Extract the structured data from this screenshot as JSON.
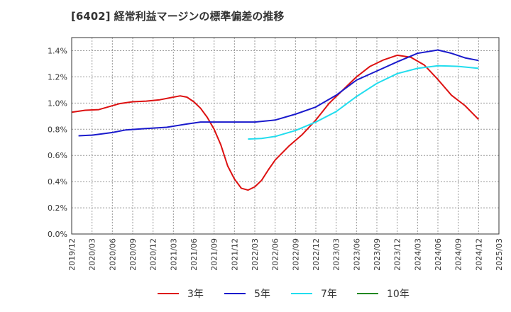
{
  "chart_data": {
    "type": "line",
    "title": "[6402]  経常利益マージンの標準偏差の推移",
    "xlabel": "",
    "ylabel": "",
    "x_ticks": [
      "2019/12",
      "2020/03",
      "2020/06",
      "2020/09",
      "2020/12",
      "2021/03",
      "2021/06",
      "2021/09",
      "2021/12",
      "2022/03",
      "2022/06",
      "2022/09",
      "2022/12",
      "2023/03",
      "2023/06",
      "2023/09",
      "2023/12",
      "2024/03",
      "2024/06",
      "2024/09",
      "2024/12",
      "2025/03"
    ],
    "y_ticks": [
      "0.0%",
      "0.2%",
      "0.4%",
      "0.6%",
      "0.8%",
      "1.0%",
      "1.2%",
      "1.4%"
    ],
    "ylim": [
      0,
      1.5
    ],
    "grid": true,
    "legend_position": "bottom",
    "series": [
      {
        "name": "3年",
        "color": "#dd1111",
        "points": [
          [
            "2019/12",
            0.93
          ],
          [
            "2020/02",
            0.945
          ],
          [
            "2020/04",
            0.95
          ],
          [
            "2020/05",
            0.965
          ],
          [
            "2020/07",
            0.995
          ],
          [
            "2020/09",
            1.01
          ],
          [
            "2020/11",
            1.015
          ],
          [
            "2021/01",
            1.025
          ],
          [
            "2021/03",
            1.045
          ],
          [
            "2021/04",
            1.055
          ],
          [
            "2021/05",
            1.045
          ],
          [
            "2021/06",
            1.01
          ],
          [
            "2021/07",
            0.96
          ],
          [
            "2021/08",
            0.89
          ],
          [
            "2021/09",
            0.8
          ],
          [
            "2021/10",
            0.68
          ],
          [
            "2021/11",
            0.52
          ],
          [
            "2021/12",
            0.42
          ],
          [
            "2022/01",
            0.35
          ],
          [
            "2022/02",
            0.335
          ],
          [
            "2022/03",
            0.36
          ],
          [
            "2022/04",
            0.41
          ],
          [
            "2022/05",
            0.49
          ],
          [
            "2022/06",
            0.565
          ],
          [
            "2022/08",
            0.67
          ],
          [
            "2022/10",
            0.76
          ],
          [
            "2022/12",
            0.87
          ],
          [
            "2023/02",
            1.0
          ],
          [
            "2023/04",
            1.1
          ],
          [
            "2023/06",
            1.2
          ],
          [
            "2023/08",
            1.28
          ],
          [
            "2023/10",
            1.33
          ],
          [
            "2023/12",
            1.365
          ],
          [
            "2024/02",
            1.35
          ],
          [
            "2024/04",
            1.29
          ],
          [
            "2024/06",
            1.18
          ],
          [
            "2024/08",
            1.06
          ],
          [
            "2024/10",
            0.98
          ],
          [
            "2024/12",
            0.875
          ]
        ]
      },
      {
        "name": "5年",
        "color": "#1a1acc",
        "points": [
          [
            "2020/01",
            0.75
          ],
          [
            "2020/03",
            0.755
          ],
          [
            "2020/06",
            0.775
          ],
          [
            "2020/08",
            0.795
          ],
          [
            "2020/11",
            0.805
          ],
          [
            "2021/02",
            0.815
          ],
          [
            "2021/05",
            0.84
          ],
          [
            "2021/07",
            0.855
          ],
          [
            "2021/09",
            0.855
          ],
          [
            "2021/12",
            0.855
          ],
          [
            "2022/03",
            0.855
          ],
          [
            "2022/06",
            0.87
          ],
          [
            "2022/09",
            0.915
          ],
          [
            "2022/12",
            0.97
          ],
          [
            "2023/03",
            1.06
          ],
          [
            "2023/06",
            1.175
          ],
          [
            "2023/09",
            1.245
          ],
          [
            "2023/12",
            1.315
          ],
          [
            "2024/03",
            1.38
          ],
          [
            "2024/06",
            1.405
          ],
          [
            "2024/08",
            1.38
          ],
          [
            "2024/10",
            1.345
          ],
          [
            "2024/12",
            1.325
          ]
        ]
      },
      {
        "name": "7年",
        "color": "#22ddee",
        "points": [
          [
            "2022/02",
            0.725
          ],
          [
            "2022/04",
            0.73
          ],
          [
            "2022/06",
            0.745
          ],
          [
            "2022/09",
            0.79
          ],
          [
            "2022/12",
            0.855
          ],
          [
            "2023/03",
            0.935
          ],
          [
            "2023/06",
            1.05
          ],
          [
            "2023/09",
            1.15
          ],
          [
            "2023/12",
            1.225
          ],
          [
            "2024/03",
            1.265
          ],
          [
            "2024/06",
            1.285
          ],
          [
            "2024/09",
            1.28
          ],
          [
            "2024/12",
            1.265
          ]
        ]
      },
      {
        "name": "10年",
        "color": "#228822",
        "points": []
      }
    ]
  }
}
